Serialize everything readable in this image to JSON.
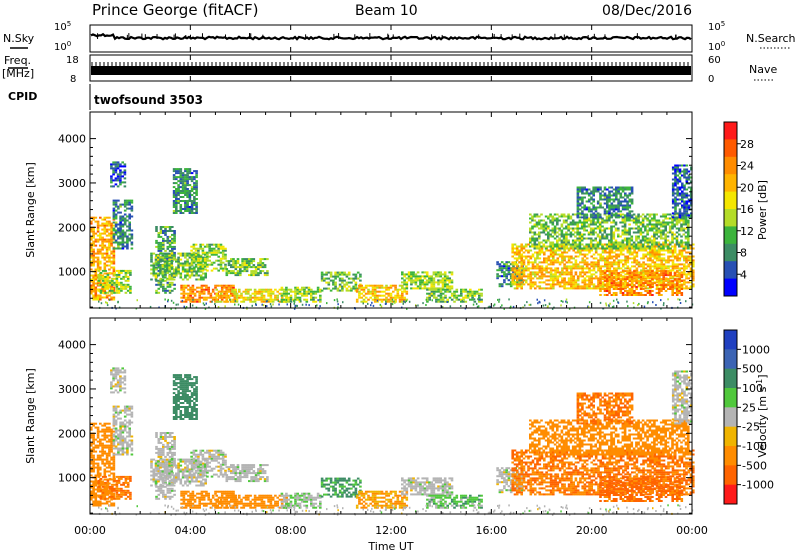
{
  "header": {
    "station": "Prince George (fitACF)",
    "beam": "Beam 10",
    "date": "08/Dec/2016"
  },
  "strips": {
    "nsky_label": "N.Sky",
    "nsky_ticks": [
      "10^5",
      "10^0"
    ],
    "nsearch_label": "N.Search",
    "nsearch_ticks": [
      "10^5",
      "10^0"
    ],
    "freq_label": "Freq.",
    "freq_unit": "[MHz]",
    "freq_ticks": [
      "18",
      "8"
    ],
    "nave_label": "Nave",
    "nave_ticks": [
      "60",
      "0"
    ],
    "cpid_label": "CPID",
    "cpid_value": "twofsound 3503"
  },
  "time_axis": {
    "label": "Time UT",
    "ticks": [
      "00:00",
      "04:00",
      "08:00",
      "12:00",
      "16:00",
      "20:00",
      "00:00"
    ]
  },
  "power_colorbar": {
    "label": "Power [dB]",
    "ticks": [
      "28",
      "24",
      "20",
      "16",
      "12",
      "8",
      "4"
    ],
    "colors": [
      "#ff1a1a",
      "#ff5a00",
      "#ff8c00",
      "#ffb400",
      "#f4e600",
      "#b4dc28",
      "#3cb43c",
      "#3c8c64",
      "#2850b4",
      "#0000ff"
    ]
  },
  "velocity_colorbar": {
    "label": "Velocity [m s^-1]",
    "ticks": [
      "1000",
      "500",
      "100",
      "25",
      "-25",
      "-100",
      "-500",
      "-1000"
    ],
    "colors": [
      "#2040c0",
      "#3c64b4",
      "#3c8c64",
      "#50c83c",
      "#b4b4b4",
      "#f0b400",
      "#ff8c00",
      "#ff6400",
      "#ff1a1a"
    ]
  },
  "chart_data": [
    {
      "type": "heatmap",
      "title": "Power",
      "ylabel": "Slant Range [km]",
      "xlabel": "",
      "y_ticks": [
        "4000",
        "3000",
        "2000",
        "1000"
      ],
      "ylim": [
        180,
        4600
      ],
      "xlim_hours": [
        0,
        24
      ],
      "colorbar_label": "Power [dB]",
      "colorbar_range": [
        0,
        32
      ],
      "regions": [
        {
          "t": [
            0.0,
            0.9
          ],
          "r": [
            350,
            2200
          ],
          "level": 22
        },
        {
          "t": [
            0.3,
            1.6
          ],
          "r": [
            500,
            1000
          ],
          "level": 14
        },
        {
          "t": [
            0.9,
            1.7
          ],
          "r": [
            1500,
            2600
          ],
          "level": 8
        },
        {
          "t": [
            0.8,
            1.4
          ],
          "r": [
            2900,
            3450
          ],
          "level": 6
        },
        {
          "t": [
            2.6,
            3.4
          ],
          "r": [
            500,
            2000
          ],
          "level": 10
        },
        {
          "t": [
            3.3,
            4.2
          ],
          "r": [
            2300,
            3300
          ],
          "level": 8
        },
        {
          "t": [
            2.4,
            4.6
          ],
          "r": [
            800,
            1400
          ],
          "level": 12
        },
        {
          "t": [
            3.6,
            5.8
          ],
          "r": [
            300,
            700
          ],
          "level": 24
        },
        {
          "t": [
            4.0,
            5.4
          ],
          "r": [
            1000,
            1600
          ],
          "level": 14
        },
        {
          "t": [
            5.4,
            7.1
          ],
          "r": [
            900,
            1300
          ],
          "level": 12
        },
        {
          "t": [
            5.0,
            7.8
          ],
          "r": [
            300,
            600
          ],
          "level": 18
        },
        {
          "t": [
            7.6,
            9.2
          ],
          "r": [
            300,
            650
          ],
          "level": 14
        },
        {
          "t": [
            9.2,
            10.8
          ],
          "r": [
            550,
            1000
          ],
          "level": 12
        },
        {
          "t": [
            10.6,
            12.6
          ],
          "r": [
            300,
            700
          ],
          "level": 20
        },
        {
          "t": [
            12.4,
            14.4
          ],
          "r": [
            600,
            1000
          ],
          "level": 14
        },
        {
          "t": [
            13.4,
            15.6
          ],
          "r": [
            300,
            600
          ],
          "level": 12
        },
        {
          "t": [
            16.2,
            17.2
          ],
          "r": [
            650,
            1200
          ],
          "level": 8
        },
        {
          "t": [
            16.8,
            24.0
          ],
          "r": [
            600,
            1600
          ],
          "level": 20
        },
        {
          "t": [
            17.5,
            23.8
          ],
          "r": [
            1500,
            2300
          ],
          "level": 12
        },
        {
          "t": [
            20.3,
            23.6
          ],
          "r": [
            450,
            1000
          ],
          "level": 24
        },
        {
          "t": [
            19.4,
            21.6
          ],
          "r": [
            2200,
            2900
          ],
          "level": 8
        },
        {
          "t": [
            23.2,
            24.0
          ],
          "r": [
            2200,
            3400
          ],
          "level": 6
        }
      ]
    },
    {
      "type": "heatmap",
      "title": "Velocity",
      "ylabel": "Slant Range [km]",
      "xlabel": "Time UT",
      "y_ticks": [
        "4000",
        "3000",
        "2000",
        "1000"
      ],
      "ylim": [
        180,
        4600
      ],
      "xlim_hours": [
        0,
        24
      ],
      "colorbar_label": "Velocity [m s^-1]",
      "colorbar_range": [
        -1000,
        1000
      ],
      "regions": [
        {
          "t": [
            0.0,
            0.9
          ],
          "r": [
            350,
            2200
          ],
          "level": -180
        },
        {
          "t": [
            0.3,
            1.6
          ],
          "r": [
            500,
            1000
          ],
          "level": -300
        },
        {
          "t": [
            0.9,
            1.7
          ],
          "r": [
            1500,
            2600
          ],
          "level": 0
        },
        {
          "t": [
            0.8,
            1.4
          ],
          "r": [
            2900,
            3450
          ],
          "level": 0
        },
        {
          "t": [
            2.6,
            3.4
          ],
          "r": [
            500,
            2000
          ],
          "level": 0
        },
        {
          "t": [
            3.3,
            4.2
          ],
          "r": [
            2300,
            3300
          ],
          "level": 150
        },
        {
          "t": [
            2.4,
            4.6
          ],
          "r": [
            800,
            1400
          ],
          "level": 0
        },
        {
          "t": [
            3.6,
            5.8
          ],
          "r": [
            300,
            700
          ],
          "level": -150
        },
        {
          "t": [
            4.0,
            5.4
          ],
          "r": [
            1000,
            1600
          ],
          "level": 0
        },
        {
          "t": [
            5.4,
            7.1
          ],
          "r": [
            900,
            1300
          ],
          "level": 0
        },
        {
          "t": [
            5.0,
            7.8
          ],
          "r": [
            300,
            600
          ],
          "level": -150
        },
        {
          "t": [
            7.6,
            9.2
          ],
          "r": [
            300,
            650
          ],
          "level": 20
        },
        {
          "t": [
            9.2,
            10.8
          ],
          "r": [
            550,
            1000
          ],
          "level": 80
        },
        {
          "t": [
            10.6,
            12.6
          ],
          "r": [
            300,
            700
          ],
          "level": -60
        },
        {
          "t": [
            12.4,
            14.4
          ],
          "r": [
            600,
            1000
          ],
          "level": 0
        },
        {
          "t": [
            13.4,
            15.6
          ],
          "r": [
            300,
            600
          ],
          "level": 40
        },
        {
          "t": [
            16.2,
            17.2
          ],
          "r": [
            650,
            1200
          ],
          "level": 0
        },
        {
          "t": [
            16.8,
            24.0
          ],
          "r": [
            600,
            1600
          ],
          "level": -300
        },
        {
          "t": [
            17.5,
            23.8
          ],
          "r": [
            1500,
            2300
          ],
          "level": -200
        },
        {
          "t": [
            20.3,
            23.6
          ],
          "r": [
            450,
            1000
          ],
          "level": -400
        },
        {
          "t": [
            19.4,
            21.6
          ],
          "r": [
            2200,
            2900
          ],
          "level": -300
        },
        {
          "t": [
            23.2,
            24.0
          ],
          "r": [
            2200,
            3400
          ],
          "level": 0
        }
      ]
    }
  ]
}
